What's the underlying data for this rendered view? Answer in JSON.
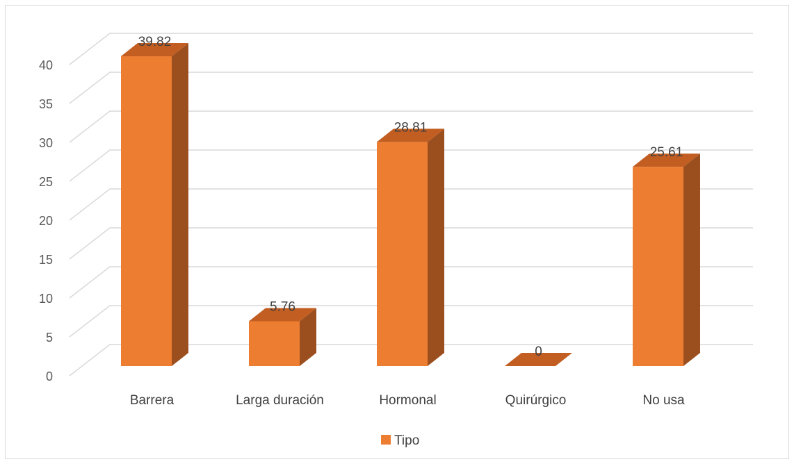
{
  "chart_data": {
    "type": "bar",
    "style": "3d-column",
    "categories": [
      "Barrera",
      "Larga duración",
      "Hormonal",
      "Quirúrgico",
      "No usa"
    ],
    "series": [
      {
        "name": "Tipo",
        "values": [
          39.82,
          5.76,
          28.81,
          0,
          25.61
        ]
      }
    ],
    "data_labels": [
      "39.82",
      "5.76",
      "28.81",
      "0",
      "25.61"
    ],
    "title": "",
    "xlabel": "",
    "ylabel": "",
    "ylim": [
      0,
      40
    ],
    "yticks": [
      0,
      5,
      10,
      15,
      20,
      25,
      30,
      35,
      40
    ],
    "grid": true,
    "legend": {
      "position": "bottom",
      "entries": [
        "Tipo"
      ]
    },
    "colors": {
      "bar_front": "#ed7d31",
      "bar_side": "#9c4f1e",
      "bar_top": "#c25e22",
      "grid": "#d9d9d9"
    }
  }
}
